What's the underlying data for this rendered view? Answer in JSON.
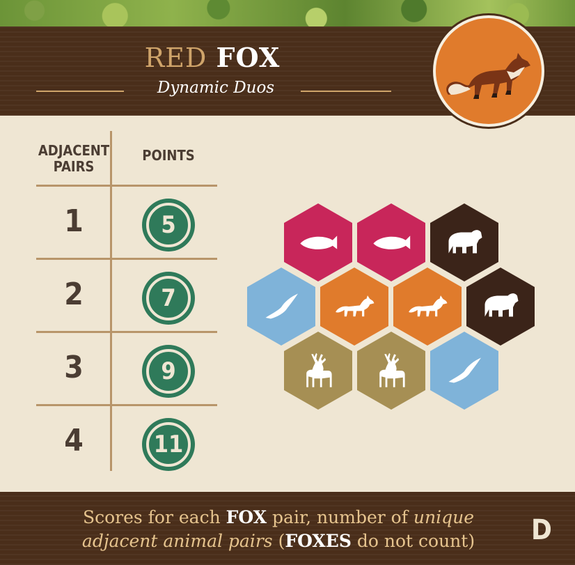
{
  "card": {
    "title_word1": "RED",
    "title_word2": "FOX",
    "subtitle": "Dynamic Duos",
    "card_letter": "D",
    "emblem_icon": "fox-icon",
    "colors": {
      "wood": "#4a2e1a",
      "parchment": "#efe6d3",
      "gold": "#cfa46a",
      "token_green": "#2f7a5a",
      "salmon_tile": "#c8265a",
      "bear_tile": "#3b2419",
      "hawk_tile": "#7fb3d9",
      "fox_tile": "#e07b2c",
      "elk_tile": "#a68f54"
    }
  },
  "table": {
    "header_pairs": [
      "ADJACENT",
      "PAIRS"
    ],
    "header_points": "POINTS",
    "rows": [
      {
        "pairs": "1",
        "points": "5"
      },
      {
        "pairs": "2",
        "points": "7"
      },
      {
        "pairs": "3",
        "points": "9"
      },
      {
        "pairs": "4",
        "points": "11"
      }
    ]
  },
  "example": {
    "tiles": [
      {
        "animal": "salmon",
        "icon": "salmon-icon"
      },
      {
        "animal": "salmon",
        "icon": "salmon-icon"
      },
      {
        "animal": "bear",
        "icon": "bear-icon"
      },
      {
        "animal": "hawk",
        "icon": "hawk-icon"
      },
      {
        "animal": "fox",
        "icon": "fox-icon"
      },
      {
        "animal": "fox",
        "icon": "fox-icon"
      },
      {
        "animal": "bear",
        "icon": "bear-icon"
      },
      {
        "animal": "elk",
        "icon": "elk-icon"
      },
      {
        "animal": "elk",
        "icon": "elk-icon"
      },
      {
        "animal": "hawk",
        "icon": "hawk-icon"
      }
    ]
  },
  "footer": {
    "l1_a": "Scores for each ",
    "l1_b": "FOX",
    "l1_c": " pair, number of ",
    "l1_d": "unique",
    "l2_a": "adjacent animal pairs",
    "l2_b": " (",
    "l2_c": "FOXES",
    "l2_d": " do not count)"
  }
}
